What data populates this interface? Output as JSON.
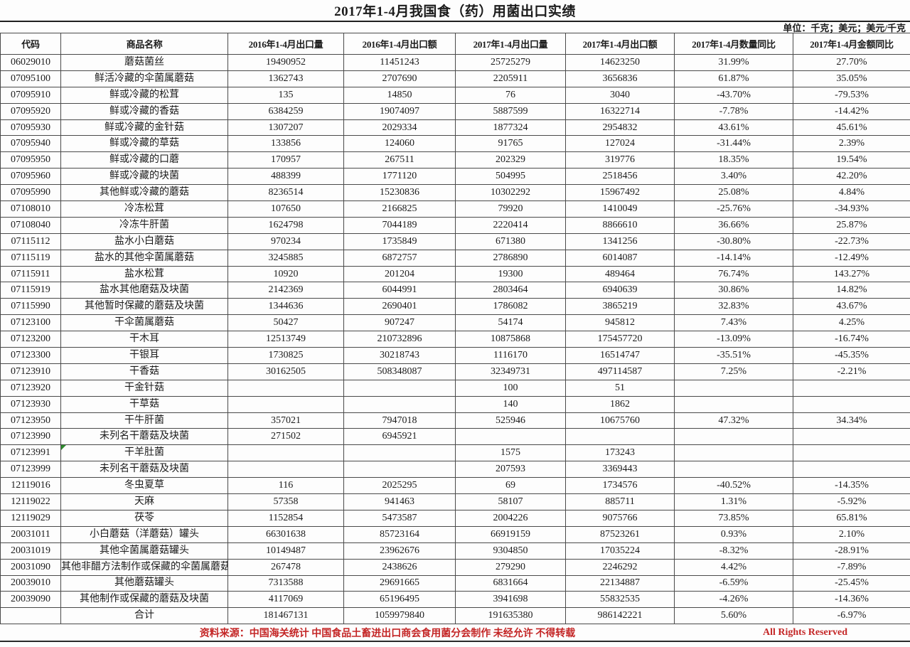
{
  "title": "2017年1-4月我国食（药）用菌出口实绩",
  "unit_note": "单位：千克；美元；美元/千克",
  "table": {
    "headers": [
      "代码",
      "商品名称",
      "2016年1-4月出口量",
      "2016年1-4月出口额",
      "2017年1-4月出口量",
      "2017年1-4月出口额",
      "2017年1-4月数量同比",
      "2017年1-4月金额同比"
    ],
    "rows": [
      [
        "06029010",
        "蘑菇菌丝",
        "19490952",
        "11451243",
        "25725279",
        "14623250",
        "31.99%",
        "27.70%"
      ],
      [
        "07095100",
        "鲜活冷藏的伞菌属蘑菇",
        "1362743",
        "2707690",
        "2205911",
        "3656836",
        "61.87%",
        "35.05%"
      ],
      [
        "07095910",
        "鲜或冷藏的松茸",
        "135",
        "14850",
        "76",
        "3040",
        "-43.70%",
        "-79.53%"
      ],
      [
        "07095920",
        "鲜或冷藏的香菇",
        "6384259",
        "19074097",
        "5887599",
        "16322714",
        "-7.78%",
        "-14.42%"
      ],
      [
        "07095930",
        "鲜或冷藏的金针菇",
        "1307207",
        "2029334",
        "1877324",
        "2954832",
        "43.61%",
        "45.61%"
      ],
      [
        "07095940",
        "鲜或冷藏的草菇",
        "133856",
        "124060",
        "91765",
        "127024",
        "-31.44%",
        "2.39%"
      ],
      [
        "07095950",
        "鲜或冷藏的口蘑",
        "170957",
        "267511",
        "202329",
        "319776",
        "18.35%",
        "19.54%"
      ],
      [
        "07095960",
        "鲜或冷藏的块菌",
        "488399",
        "1771120",
        "504995",
        "2518456",
        "3.40%",
        "42.20%"
      ],
      [
        "07095990",
        "其他鲜或冷藏的蘑菇",
        "8236514",
        "15230836",
        "10302292",
        "15967492",
        "25.08%",
        "4.84%"
      ],
      [
        "07108010",
        "冷冻松茸",
        "107650",
        "2166825",
        "79920",
        "1410049",
        "-25.76%",
        "-34.93%"
      ],
      [
        "07108040",
        "冷冻牛肝菌",
        "1624798",
        "7044189",
        "2220414",
        "8866610",
        "36.66%",
        "25.87%"
      ],
      [
        "07115112",
        "盐水小白蘑菇",
        "970234",
        "1735849",
        "671380",
        "1341256",
        "-30.80%",
        "-22.73%"
      ],
      [
        "07115119",
        "盐水的其他伞菌属蘑菇",
        "3245885",
        "6872757",
        "2786890",
        "6014087",
        "-14.14%",
        "-12.49%"
      ],
      [
        "07115911",
        "盐水松茸",
        "10920",
        "201204",
        "19300",
        "489464",
        "76.74%",
        "143.27%"
      ],
      [
        "07115919",
        "盐水其他磨菇及块菌",
        "2142369",
        "6044991",
        "2803464",
        "6940639",
        "30.86%",
        "14.82%"
      ],
      [
        "07115990",
        "其他暂时保藏的蘑菇及块菌",
        "1344636",
        "2690401",
        "1786082",
        "3865219",
        "32.83%",
        "43.67%"
      ],
      [
        "07123100",
        "干伞菌属蘑菇",
        "50427",
        "907247",
        "54174",
        "945812",
        "7.43%",
        "4.25%"
      ],
      [
        "07123200",
        "干木耳",
        "12513749",
        "210732896",
        "10875868",
        "175457720",
        "-13.09%",
        "-16.74%"
      ],
      [
        "07123300",
        "干银耳",
        "1730825",
        "30218743",
        "1116170",
        "16514747",
        "-35.51%",
        "-45.35%"
      ],
      [
        "07123910",
        "干香菇",
        "30162505",
        "508348087",
        "32349731",
        "497114587",
        "7.25%",
        "-2.21%"
      ],
      [
        "07123920",
        "干金针菇",
        "",
        "",
        "100",
        "51",
        "",
        ""
      ],
      [
        "07123930",
        "干草菇",
        "",
        "",
        "140",
        "1862",
        "",
        ""
      ],
      [
        "07123950",
        "干牛肝菌",
        "357021",
        "7947018",
        "525946",
        "10675760",
        "47.32%",
        "34.34%"
      ],
      [
        "07123990",
        "未列名干蘑菇及块菌",
        "271502",
        "6945921",
        "",
        "",
        "",
        ""
      ],
      [
        "07123991",
        "干羊肚菌",
        "",
        "",
        "1575",
        "173243",
        "",
        ""
      ],
      [
        "07123999",
        "未列名干蘑菇及块菌",
        "",
        "",
        "207593",
        "3369443",
        "",
        ""
      ],
      [
        "12119016",
        "冬虫夏草",
        "116",
        "2025295",
        "69",
        "1734576",
        "-40.52%",
        "-14.35%"
      ],
      [
        "12119022",
        "天麻",
        "57358",
        "941463",
        "58107",
        "885711",
        "1.31%",
        "-5.92%"
      ],
      [
        "12119029",
        "茯苓",
        "1152854",
        "5473587",
        "2004226",
        "9075766",
        "73.85%",
        "65.81%"
      ],
      [
        "20031011",
        "小白蘑菇（洋蘑菇）罐头",
        "66301638",
        "85723164",
        "66919159",
        "87523261",
        "0.93%",
        "2.10%"
      ],
      [
        "20031019",
        "其他伞菌属蘑菇罐头",
        "10149487",
        "23962676",
        "9304850",
        "17035224",
        "-8.32%",
        "-28.91%"
      ],
      [
        "20031090",
        "其他非醋方法制作或保藏的伞菌属蘑菇",
        "267478",
        "2438626",
        "279290",
        "2246292",
        "4.42%",
        "-7.89%"
      ],
      [
        "20039010",
        "其他蘑菇罐头",
        "7313588",
        "29691665",
        "6831664",
        "22134887",
        "-6.59%",
        "-25.45%"
      ],
      [
        "20039090",
        "其他制作或保藏的蘑菇及块菌",
        "4117069",
        "65196495",
        "3941698",
        "55832535",
        "-4.26%",
        "-14.36%"
      ]
    ],
    "total_row": [
      "",
      "合计",
      "181467131",
      "1059979840",
      "191635380",
      "986142221",
      "5.60%",
      "-6.97%"
    ],
    "green_marker_row_index": 24
  },
  "footer": {
    "source_text": "资料来源：中国海关统计 中国食品土畜进出口商会食用菌分会制作 未经允许 不得转载",
    "rights_text": "All Rights Reserved"
  },
  "colors": {
    "footer_red": "#c42626",
    "marker_green": "#2e8b2e",
    "border_gray": "#4a4a4a"
  }
}
